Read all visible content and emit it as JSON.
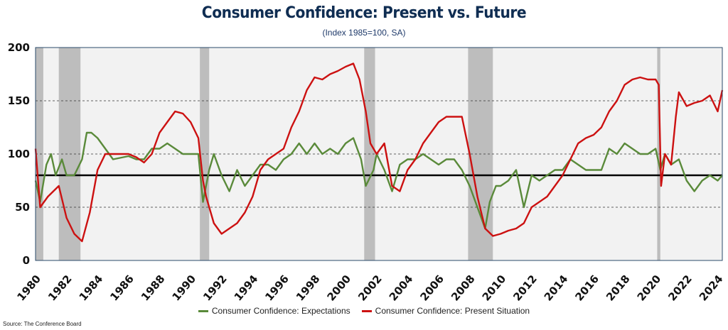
{
  "chart_data": {
    "type": "line",
    "title": "Consumer Confidence: Present vs. Future",
    "subtitle": "(Index 1985=100, SA)",
    "xlabel": "",
    "ylabel": "",
    "xlim": [
      1980,
      2024.3
    ],
    "ylim": [
      0,
      200
    ],
    "y_ticks": [
      "0",
      "50",
      "100",
      "150",
      "200"
    ],
    "x_ticks": [
      "1980",
      "1982",
      "1984",
      "1986",
      "1988",
      "1990",
      "1992",
      "1994",
      "1996",
      "1998",
      "2000",
      "2002",
      "2004",
      "2006",
      "2008",
      "2010",
      "2012",
      "2014",
      "2016",
      "2018",
      "2020",
      "2022",
      "2024"
    ],
    "dashed_gridlines": [
      50,
      100,
      150
    ],
    "reference_line": 80,
    "recessions": [
      [
        1980.0,
        1980.5
      ],
      [
        1981.5,
        1982.9
      ],
      [
        1990.6,
        1991.2
      ],
      [
        2001.2,
        2001.9
      ],
      [
        2007.9,
        2009.5
      ],
      [
        2020.1,
        2020.3
      ]
    ],
    "legend_position": "bottom",
    "series": [
      {
        "name": "Consumer Confidence: Expectations",
        "color": "#5a8a3a",
        "x": [
          1980,
          1980.3,
          1980.7,
          1981,
          1981.3,
          1981.7,
          1982,
          1982.5,
          1983,
          1983.3,
          1983.6,
          1984,
          1984.5,
          1985,
          1986,
          1986.5,
          1987,
          1987.5,
          1988,
          1988.5,
          1989,
          1989.5,
          1990,
          1990.5,
          1990.8,
          1991.2,
          1991.5,
          1992,
          1992.5,
          1993,
          1993.5,
          1994,
          1994.5,
          1995,
          1995.5,
          1996,
          1996.5,
          1997,
          1997.5,
          1998,
          1998.5,
          1999,
          1999.5,
          2000,
          2000.5,
          2001,
          2001.3,
          2001.8,
          2002,
          2002.5,
          2003,
          2003.5,
          2004,
          2004.5,
          2005,
          2005.5,
          2006,
          2006.5,
          2007,
          2007.5,
          2008,
          2008.5,
          2009,
          2009.3,
          2009.7,
          2010,
          2010.5,
          2011,
          2011.5,
          2012,
          2012.5,
          2013,
          2013.5,
          2014,
          2014.5,
          2015,
          2015.5,
          2016,
          2016.5,
          2017,
          2017.5,
          2018,
          2018.5,
          2019,
          2019.5,
          2020,
          2020.3,
          2020.6,
          2021,
          2021.5,
          2022,
          2022.5,
          2023,
          2023.5,
          2024,
          2024.3
        ],
        "values": [
          75,
          55,
          90,
          100,
          80,
          95,
          80,
          80,
          95,
          120,
          120,
          115,
          105,
          95,
          98,
          95,
          95,
          105,
          105,
          110,
          105,
          100,
          100,
          100,
          55,
          85,
          100,
          80,
          65,
          85,
          70,
          80,
          90,
          90,
          85,
          95,
          100,
          110,
          100,
          110,
          100,
          105,
          100,
          110,
          115,
          95,
          70,
          85,
          100,
          85,
          65,
          90,
          95,
          95,
          100,
          95,
          90,
          95,
          95,
          85,
          70,
          50,
          30,
          55,
          70,
          70,
          75,
          85,
          50,
          80,
          75,
          80,
          85,
          85,
          95,
          90,
          85,
          85,
          85,
          105,
          100,
          110,
          105,
          100,
          100,
          105,
          85,
          100,
          90,
          95,
          75,
          65,
          75,
          80,
          75,
          80
        ]
      },
      {
        "name": "Consumer Confidence: Present Situation",
        "color": "#cc1111",
        "x": [
          1980,
          1980.3,
          1980.8,
          1981.5,
          1982,
          1982.5,
          1983,
          1983.5,
          1984,
          1984.5,
          1985,
          1986,
          1986.5,
          1987,
          1987.5,
          1988,
          1988.5,
          1989,
          1989.5,
          1990,
          1990.5,
          1990.8,
          1991,
          1991.5,
          1992,
          1992.5,
          1993,
          1993.5,
          1994,
          1994.5,
          1995,
          1995.5,
          1996,
          1996.5,
          1997,
          1997.5,
          1998,
          1998.5,
          1999,
          1999.5,
          2000,
          2000.5,
          2000.9,
          2001.3,
          2001.6,
          2002,
          2002.5,
          2003,
          2003.5,
          2004,
          2004.5,
          2005,
          2005.5,
          2006,
          2006.5,
          2007,
          2007.5,
          2008,
          2008.5,
          2009,
          2009.5,
          2010,
          2010.5,
          2011,
          2011.5,
          2012,
          2012.5,
          2013,
          2013.5,
          2014,
          2014.5,
          2015,
          2015.5,
          2016,
          2016.5,
          2017,
          2017.5,
          2018,
          2018.5,
          2019,
          2019.5,
          2020,
          2020.2,
          2020.35,
          2020.6,
          2021,
          2021.3,
          2021.5,
          2022,
          2022.5,
          2023,
          2023.5,
          2024,
          2024.3
        ],
        "values": [
          105,
          50,
          60,
          70,
          40,
          25,
          18,
          45,
          85,
          100,
          100,
          100,
          97,
          92,
          100,
          120,
          130,
          140,
          138,
          130,
          115,
          75,
          60,
          35,
          25,
          30,
          35,
          45,
          60,
          85,
          95,
          100,
          105,
          125,
          140,
          160,
          172,
          170,
          175,
          178,
          182,
          185,
          170,
          140,
          110,
          100,
          110,
          70,
          65,
          85,
          95,
          110,
          120,
          130,
          135,
          135,
          135,
          100,
          60,
          30,
          23,
          25,
          28,
          30,
          35,
          50,
          55,
          60,
          70,
          80,
          95,
          110,
          115,
          118,
          125,
          140,
          150,
          165,
          170,
          172,
          170,
          170,
          165,
          70,
          100,
          90,
          135,
          158,
          145,
          148,
          150,
          155,
          140,
          160
        ]
      }
    ]
  },
  "source": "Source: The Conference Board"
}
